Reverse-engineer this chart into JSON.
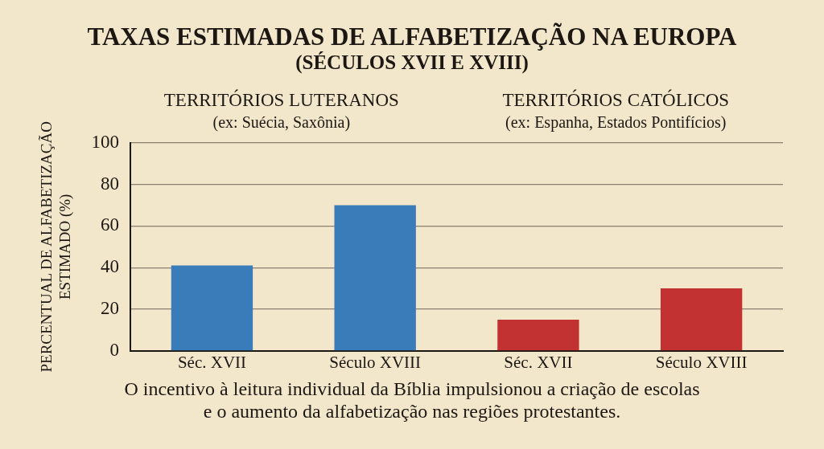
{
  "chart_data": {
    "type": "bar",
    "title": "TAXAS ESTIMADAS DE ALFABETIZAÇÃO NA EUROPA",
    "subtitle": "(SÉCULOS XVII E XVIII)",
    "ylabel": "PERCENTUAL DE ALFABETIZAÇÃO\nESTIMADO (%)",
    "categories": [
      "Séc. XVII",
      "Século XVIII",
      "Séc. XVII",
      "Século XVIII"
    ],
    "values": [
      41,
      70,
      15,
      30
    ],
    "colors": [
      "#3a7bba",
      "#3a7bba",
      "#c23232",
      "#c23232"
    ],
    "ylim": [
      0,
      100
    ],
    "yticks": [
      0,
      20,
      40,
      60,
      80,
      100
    ],
    "grid": "y",
    "annotations": [
      "TERRITÓRIOS LUTERANOS",
      "(ex: Suécia, Saxônia)",
      "TERRITÓRIOS CATÓLICOS",
      "(ex: Espanha, Estados Pontifícios)",
      "O incentivo à leitura individual da Bíblia impulsionou a criação de escolas\ne o aumento da alfabetização nas regiões protestantes."
    ]
  }
}
